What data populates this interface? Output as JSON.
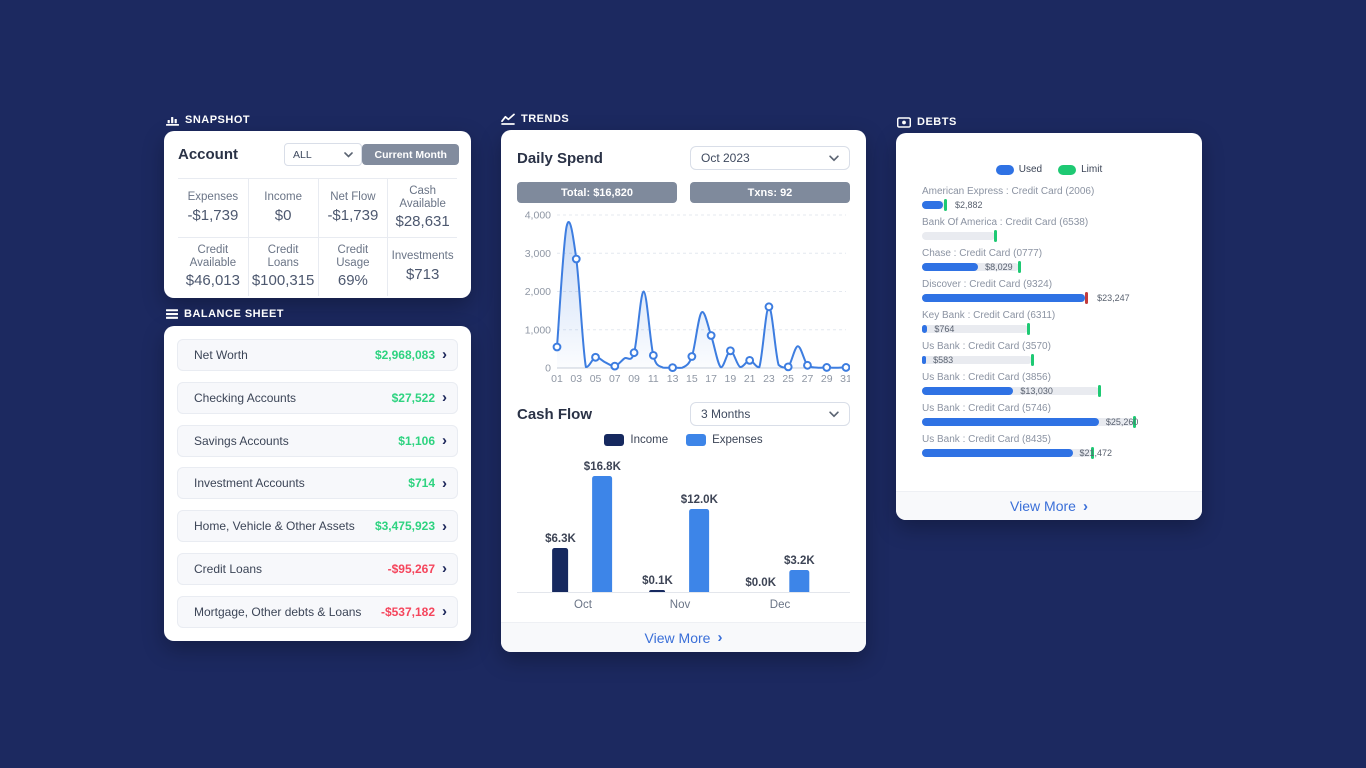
{
  "colors": {
    "background": "#1c2960",
    "card": "#ffffff",
    "badge_gray": "#7f8a9c",
    "positive_green": "#2ed380",
    "negative_red": "#f5455c",
    "line_blue": "#3d7de0",
    "income_navy": "#16295f",
    "expenses_blue": "#3d85e8",
    "link_blue": "#3a6fd8",
    "used_blue": "#2f72e4",
    "limit_green": "#1ec973",
    "over_limit_red": "#c23b3b",
    "track_gray": "#e9ebf0"
  },
  "snapshot": {
    "header": "SNAPSHOT",
    "account_label": "Account",
    "account_value": "ALL",
    "period_button": "Current Month",
    "metrics": [
      {
        "label": "Expenses",
        "value": "-$1,739"
      },
      {
        "label": "Income",
        "value": "$0"
      },
      {
        "label": "Net Flow",
        "value": "-$1,739"
      },
      {
        "label": "Cash Available",
        "value": "$28,631"
      },
      {
        "label": "Credit Available",
        "value": "$46,013"
      },
      {
        "label": "Credit Loans",
        "value": "$100,315"
      },
      {
        "label": "Credit Usage",
        "value": "69%"
      },
      {
        "label": "Investments",
        "value": "$713"
      }
    ]
  },
  "balance_sheet": {
    "header": "BALANCE SHEET",
    "rows": [
      {
        "label": "Net Worth",
        "value": "$2,968,083",
        "sentiment": "positive"
      },
      {
        "label": "Checking Accounts",
        "value": "$27,522",
        "sentiment": "positive"
      },
      {
        "label": "Savings Accounts",
        "value": "$1,106",
        "sentiment": "positive"
      },
      {
        "label": "Investment Accounts",
        "value": "$714",
        "sentiment": "positive"
      },
      {
        "label": "Home, Vehicle & Other Assets",
        "value": "$3,475,923",
        "sentiment": "positive"
      },
      {
        "label": "Credit Loans",
        "value": "-$95,267",
        "sentiment": "negative"
      },
      {
        "label": "Mortgage, Other debts & Loans",
        "value": "-$537,182",
        "sentiment": "negative"
      }
    ]
  },
  "trends": {
    "header": "TRENDS",
    "daily_spend_title": "Daily Spend",
    "daily_spend_period": "Oct 2023",
    "total_badge": "Total: $16,820",
    "txns_badge": "Txns: 92",
    "cash_flow_title": "Cash Flow",
    "cash_flow_period": "3 Months",
    "legend": [
      "Income",
      "Expenses"
    ],
    "view_more": "View More"
  },
  "debts": {
    "header": "DEBTS",
    "legend": [
      "Used",
      "Limit"
    ],
    "rows": [
      {
        "name": "American Express : Credit Card (2006)",
        "used_label": "$2,882",
        "used_pct": 8.2,
        "limit_pct": 8.8,
        "over_limit": false
      },
      {
        "name": "Bank Of America : Credit Card (6538)",
        "used_label": "",
        "used_pct": 0,
        "limit_pct": 28.5,
        "over_limit": false
      },
      {
        "name": "Chase : Credit Card (0777)",
        "used_label": "$8,029",
        "used_pct": 21.9,
        "limit_pct": 37.8,
        "over_limit": false
      },
      {
        "name": "Discover : Credit Card (9324)",
        "used_label": "$23,247",
        "used_pct": 63.7,
        "limit_pct": 64.2,
        "over_limit": true
      },
      {
        "name": "Key Bank : Credit Card (6311)",
        "used_label": "$764",
        "used_pct": 2.1,
        "limit_pct": 41.3,
        "over_limit": false
      },
      {
        "name": "Us Bank : Credit Card (3570)",
        "used_label": "$583",
        "used_pct": 1.6,
        "limit_pct": 43.0,
        "over_limit": false
      },
      {
        "name": "Us Bank : Credit Card (3856)",
        "used_label": "$13,030",
        "used_pct": 35.7,
        "limit_pct": 69.1,
        "over_limit": false
      },
      {
        "name": "Us Bank : Credit Card (5746)",
        "used_label": "$25,260",
        "used_pct": 69.1,
        "limit_pct": 83.0,
        "over_limit": false
      },
      {
        "name": "Us Bank : Credit Card (8435)",
        "used_label": "$21,472",
        "used_pct": 58.8,
        "limit_pct": 66.4,
        "over_limit": false
      }
    ],
    "view_more": "View More"
  },
  "chart_data": [
    {
      "id": "daily_spend",
      "type": "line",
      "title": "Daily Spend",
      "period": "Oct 2023",
      "total": "Total: $16,820",
      "transactions": "Txns: 92",
      "x": [
        1,
        2,
        3,
        4,
        5,
        6,
        7,
        8,
        9,
        10,
        11,
        12,
        13,
        14,
        15,
        16,
        17,
        18,
        19,
        20,
        21,
        22,
        23,
        24,
        25,
        26,
        27,
        28,
        29,
        30,
        31
      ],
      "values": [
        550,
        3700,
        2850,
        30,
        280,
        150,
        50,
        250,
        400,
        2000,
        330,
        10,
        10,
        5,
        300,
        1450,
        850,
        20,
        450,
        30,
        200,
        20,
        1600,
        80,
        30,
        570,
        70,
        10,
        15,
        5,
        15
      ],
      "yticks": [
        0,
        1000,
        2000,
        3000,
        4000
      ],
      "ytick_labels": [
        "0",
        "1,000",
        "2,000",
        "3,000",
        "4,000"
      ],
      "xtick_labels": [
        "01",
        "03",
        "05",
        "07",
        "09",
        "11",
        "13",
        "15",
        "17",
        "19",
        "21",
        "23",
        "25",
        "27",
        "29",
        "31"
      ],
      "ylim": [
        0,
        4000
      ],
      "line_color": "#3d7de0",
      "grid": "dashed-horizontal",
      "markers": "odd-days"
    },
    {
      "id": "cash_flow",
      "type": "bar",
      "title": "Cash Flow",
      "period": "3 Months",
      "categories": [
        "Oct",
        "Nov",
        "Dec"
      ],
      "series": [
        {
          "name": "Income",
          "color": "#16295f",
          "values": [
            6300,
            100,
            0
          ],
          "labels": [
            "$6.3K",
            "$0.1K",
            "$0.0K"
          ]
        },
        {
          "name": "Expenses",
          "color": "#3d85e8",
          "values": [
            16800,
            12000,
            3200
          ],
          "labels": [
            "$16.8K",
            "$12.0K",
            "$3.2K"
          ]
        }
      ],
      "ymax": 16800,
      "legend_position": "top-center"
    }
  ]
}
